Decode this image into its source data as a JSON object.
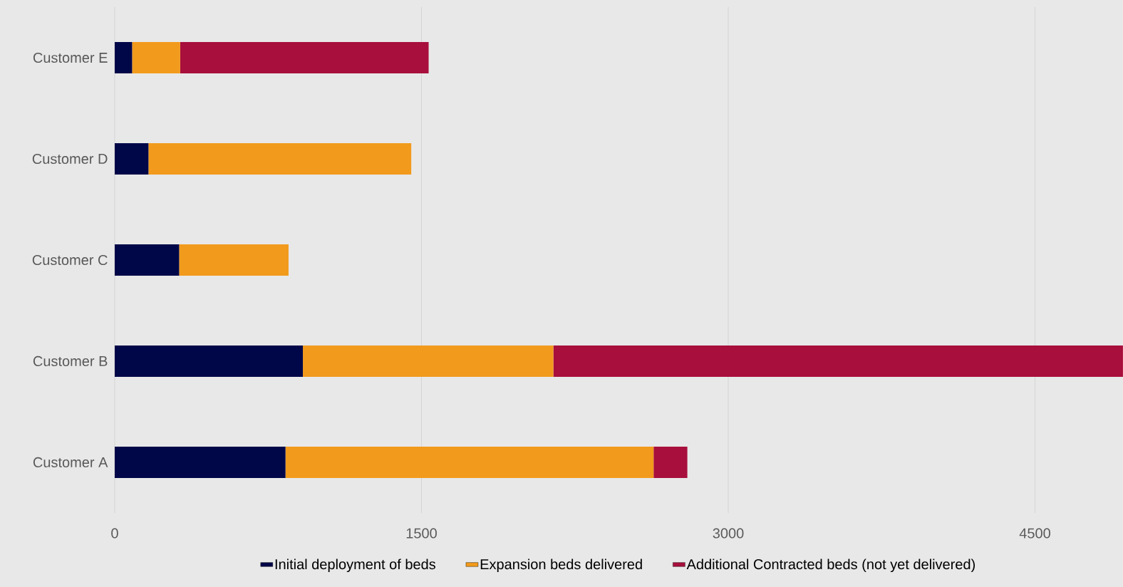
{
  "chart_data": {
    "type": "bar",
    "orientation": "horizontal",
    "stacked": true,
    "categories": [
      "Customer E",
      "Customer D",
      "Customer C",
      "Customer B",
      "Customer A"
    ],
    "series": [
      {
        "name": "Initial deployment of beds",
        "color": "#000748",
        "values": [
          85,
          165,
          315,
          920,
          835
        ]
      },
      {
        "name": "Expansion beds delivered",
        "color": "#f29a1c",
        "values": [
          235,
          1285,
          535,
          1225,
          1800
        ]
      },
      {
        "name": "Additional Contracted beds (not yet delivered)",
        "color": "#a80f3c",
        "values": [
          1215,
          null,
          null,
          2785,
          165
        ]
      }
    ],
    "xlim": [
      0,
      4930
    ],
    "xticks": [
      0,
      1500,
      3000,
      4500
    ],
    "grid": "x",
    "legend": "bottom"
  }
}
